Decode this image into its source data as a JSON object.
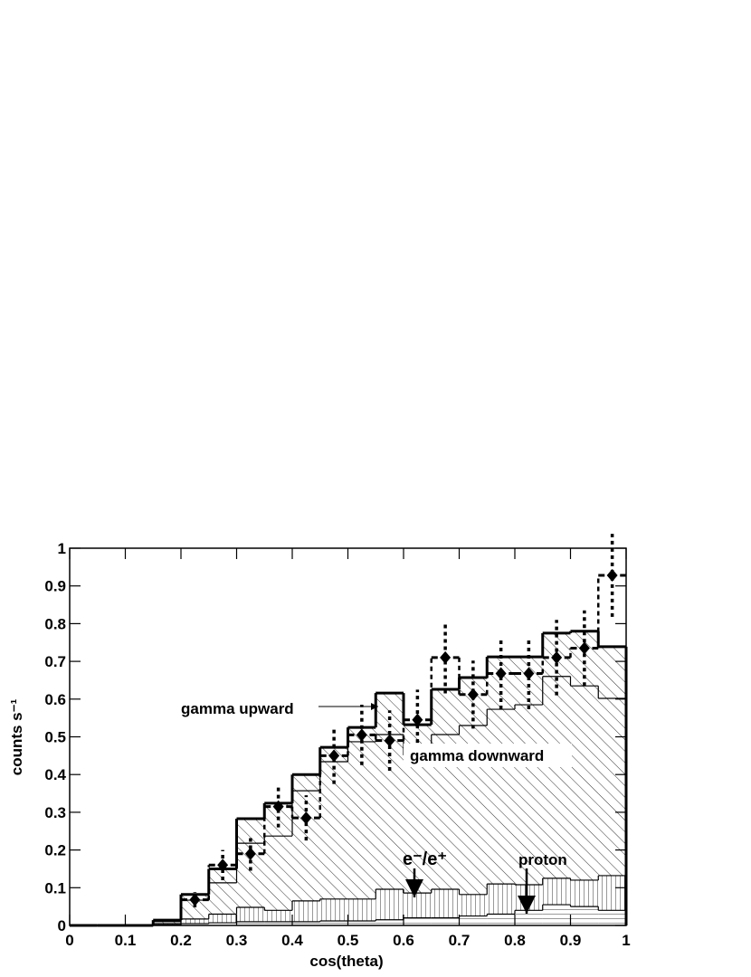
{
  "chart_data": {
    "type": "stacked-histogram",
    "xlabel": "cos(theta)",
    "ylabel": "counts s⁻¹",
    "bins": [
      0,
      0.05,
      0.1,
      0.15,
      0.2,
      0.25,
      0.3,
      0.35,
      0.4,
      0.45,
      0.5,
      0.55,
      0.6,
      0.65,
      0.7,
      0.75,
      0.8,
      0.85,
      0.9,
      0.95,
      1
    ],
    "xlim": [
      0,
      1
    ],
    "ylim": [
      0,
      1
    ],
    "xticks": [
      0,
      0.1,
      0.2,
      0.3,
      0.4,
      0.5,
      0.6,
      0.7,
      0.8,
      0.9,
      1
    ],
    "yticks": [
      0,
      0.1,
      0.2,
      0.3,
      0.4,
      0.5,
      0.6,
      0.7,
      0.8,
      0.9,
      1
    ],
    "grid": false,
    "series": [
      {
        "name": "proton",
        "color": "#000000",
        "hatch": "horizontal",
        "values": [
          0,
          0,
          0,
          0.002,
          0.005,
          0.007,
          0.01,
          0.01,
          0.01,
          0.012,
          0.012,
          0.015,
          0.02,
          0.02,
          0.025,
          0.03,
          0.04,
          0.055,
          0.05,
          0.04
        ]
      },
      {
        "name": "e⁻/e⁺",
        "color": "#000000",
        "hatch": "vertical",
        "values": [
          0,
          0,
          0,
          0.003,
          0.012,
          0.023,
          0.038,
          0.03,
          0.055,
          0.058,
          0.058,
          0.081,
          0.066,
          0.076,
          0.057,
          0.08,
          0.068,
          0.07,
          0.07,
          0.092
        ]
      },
      {
        "name": "gamma downward",
        "color": "#000000",
        "hatch": "diagonal",
        "values": [
          0,
          0,
          0,
          0.005,
          0.05,
          0.083,
          0.17,
          0.197,
          0.292,
          0.364,
          0.417,
          0.41,
          0.365,
          0.41,
          0.448,
          0.463,
          0.477,
          0.535,
          0.515,
          0.47
        ]
      },
      {
        "name": "gamma upward",
        "color": "#000000",
        "hatch": "diagonal",
        "values": [
          0,
          0,
          0,
          0.004,
          0.015,
          0.037,
          0.065,
          0.087,
          0.043,
          0.038,
          0.038,
          0.11,
          0.081,
          0.12,
          0.127,
          0.139,
          0.127,
          0.115,
          0.145,
          0.137
        ]
      }
    ],
    "measured": {
      "color": "#000000",
      "values": [
        null,
        null,
        null,
        null,
        0.068,
        0.16,
        0.19,
        0.315,
        0.285,
        0.45,
        0.505,
        0.49,
        0.545,
        0.71,
        0.612,
        0.668,
        0.668,
        0.71,
        0.735,
        0.928
      ],
      "errors": [
        null,
        null,
        null,
        null,
        0.02,
        0.04,
        0.045,
        0.055,
        0.06,
        0.075,
        0.08,
        0.08,
        0.08,
        0.095,
        0.09,
        0.095,
        0.095,
        0.1,
        0.1,
        0.11
      ]
    }
  }
}
